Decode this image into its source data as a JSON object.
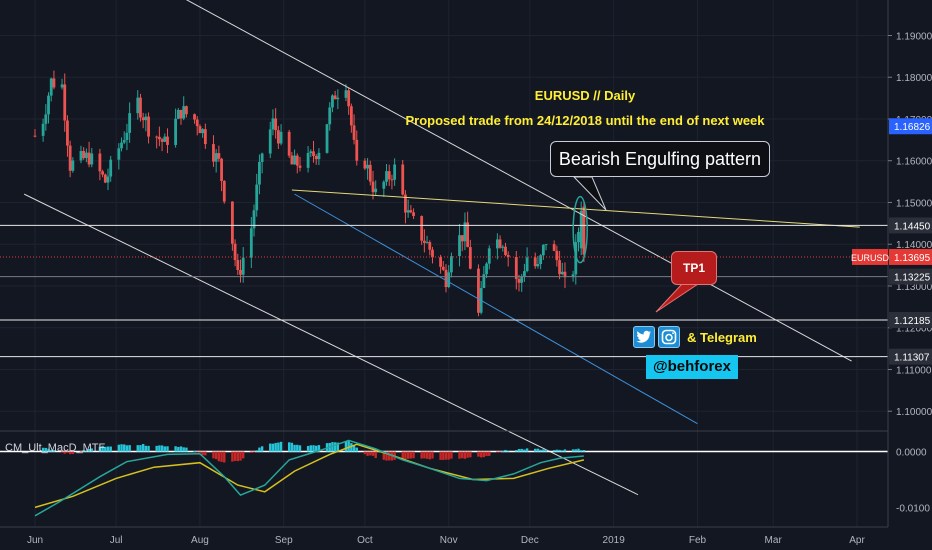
{
  "annotations": {
    "title": "EURUSD // Daily",
    "subtitle": "Proposed trade from 24/12/2018 until the end of next week",
    "pattern_callout": "Bearish Engulfing pattern",
    "target_label": "TP1",
    "social_text": "& Telegram",
    "handle": "@behforex"
  },
  "indicator": {
    "name": "CM_Ult_MacD_MTF"
  },
  "colors": {
    "background": "#131722",
    "bull": "#26a69a",
    "bear": "#ef5350",
    "annotation": "#ffee33",
    "trendline_white": "#d8d8d8",
    "trendline_yellow": "#e6d97a",
    "trendline_blue": "#3d8fd8",
    "price_tag": "#e53935",
    "ellipse": "#26a69a",
    "macd_line": "#26a69a",
    "signal_line": "#d4c11f"
  },
  "icons": [
    "twitter-icon",
    "instagram-icon"
  ],
  "chart_data": [
    {
      "type": "candlestick",
      "symbol": "EURUSD",
      "timeframe": "Daily",
      "y_axis_ticks": [
        "1.19000",
        "1.18000",
        "1.17000",
        "1.16000",
        "1.15000",
        "1.14000",
        "1.13000",
        "1.12000",
        "1.11000",
        "1.10000"
      ],
      "x_axis_ticks": [
        "Jun",
        "Jul",
        "Aug",
        "Sep",
        "Oct",
        "Nov",
        "Dec",
        "2019",
        "Feb",
        "Mar",
        "Apr"
      ],
      "ylim": [
        1.0955,
        1.1985
      ],
      "price_tag": {
        "symbol": "EURUSD",
        "value": "1.13695"
      },
      "horizontal_levels": [
        {
          "value": "1.16826",
          "style": "label-only",
          "color": "#2962ff"
        },
        {
          "value": "1.14450",
          "style": "solid"
        },
        {
          "value": "1.13695",
          "style": "dotted-red"
        },
        {
          "value": "1.13225",
          "style": "solid-gray"
        },
        {
          "value": "1.12185",
          "style": "solid"
        },
        {
          "value": "1.11307",
          "style": "solid"
        }
      ],
      "close_path": [
        [
          "Jun 01",
          1.166
        ],
        [
          "Jun 04",
          1.17
        ],
        [
          "Jun 07",
          1.179
        ],
        [
          "Jun 11",
          1.178
        ],
        [
          "Jun 14",
          1.159
        ],
        [
          "Jun 21",
          1.161
        ],
        [
          "Jun 27",
          1.155
        ],
        [
          "Jul 02",
          1.163
        ],
        [
          "Jul 09",
          1.174
        ],
        [
          "Jul 13",
          1.168
        ],
        [
          "Jul 19",
          1.164
        ],
        [
          "Jul 25",
          1.172
        ],
        [
          "Jul 31",
          1.1695
        ],
        [
          "Aug 08",
          1.1595
        ],
        [
          "Aug 13",
          1.141
        ],
        [
          "Aug 15",
          1.132
        ],
        [
          "Aug 20",
          1.144
        ],
        [
          "Aug 24",
          1.162
        ],
        [
          "Aug 28",
          1.169
        ],
        [
          "Sep 04",
          1.159
        ],
        [
          "Sep 10",
          1.16
        ],
        [
          "Sep 14",
          1.163
        ],
        [
          "Sep 20",
          1.176
        ],
        [
          "Sep 24",
          1.179
        ],
        [
          "Sep 28",
          1.158
        ],
        [
          "Oct 01",
          1.16
        ],
        [
          "Oct 05",
          1.152
        ],
        [
          "Oct 12",
          1.158
        ],
        [
          "Oct 17",
          1.147
        ],
        [
          "Oct 24",
          1.14
        ],
        [
          "Oct 31",
          1.132
        ],
        [
          "Nov 02",
          1.139
        ],
        [
          "Nov 07",
          1.143
        ],
        [
          "Nov 12",
          1.123
        ],
        [
          "Nov 16",
          1.141
        ],
        [
          "Nov 21",
          1.141
        ],
        [
          "Nov 27",
          1.13
        ],
        [
          "Nov 30",
          1.137
        ],
        [
          "Dec 04",
          1.134
        ],
        [
          "Dec 07",
          1.141
        ],
        [
          "Dec 12",
          1.135
        ],
        [
          "Dec 14",
          1.13
        ],
        [
          "Dec 17",
          1.134
        ],
        [
          "Dec 20",
          1.148
        ],
        [
          "Dec 21",
          1.1375
        ]
      ],
      "trendlines": [
        {
          "color": "white",
          "from": [
            "May 20",
            1.2225
          ],
          "to": [
            "Mar 30",
            1.112
          ]
        },
        {
          "color": "white",
          "from": [
            "May 28",
            1.152
          ],
          "to": [
            "Jan 10",
            1.08
          ]
        },
        {
          "color": "yellow",
          "from": [
            "Sep 04",
            1.153
          ],
          "to": [
            "Apr 02",
            1.1441
          ]
        },
        {
          "color": "blue",
          "from": [
            "Sep 05",
            1.152
          ],
          "to": [
            "Feb 01",
            1.097
          ]
        }
      ],
      "pattern_highlight": {
        "name": "Bearish Engulfing pattern",
        "date": "Dec 20",
        "range": [
          1.1375,
          1.1495
        ]
      },
      "target": {
        "label": "TP1",
        "value": "1.12185"
      }
    },
    {
      "type": "histogram+line",
      "title": "CM_Ult_MacD_MTF",
      "y_axis_ticks": [
        "0.0000",
        "-0.0100"
      ],
      "ylim": [
        -0.0135,
        0.0035
      ],
      "histogram": [
        [
          "Jun 04",
          0.0008
        ],
        [
          "Jun 14",
          -0.0005
        ],
        [
          "Jun 25",
          0.0009
        ],
        [
          "Jul 06",
          0.0013
        ],
        [
          "Jul 16",
          0.0011
        ],
        [
          "Jul 26",
          0.0009
        ],
        [
          "Aug 03",
          -0.0008
        ],
        [
          "Aug 10",
          -0.0019
        ],
        [
          "Aug 16",
          -0.0017
        ],
        [
          "Aug 24",
          0.001
        ],
        [
          "Aug 31",
          0.0018
        ],
        [
          "Sep 10",
          0.0009
        ],
        [
          "Sep 19",
          0.0016
        ],
        [
          "Sep 25",
          0.0018
        ],
        [
          "Oct 01",
          -0.0005
        ],
        [
          "Oct 09",
          -0.0016
        ],
        [
          "Oct 19",
          -0.0011
        ],
        [
          "Oct 29",
          -0.0014
        ],
        [
          "Nov 06",
          -0.0012
        ],
        [
          "Nov 14",
          -0.001
        ],
        [
          "Nov 22",
          0.0003
        ],
        [
          "Dec 01",
          0.0005
        ],
        [
          "Dec 10",
          0.0002
        ],
        [
          "Dec 21",
          0.0004
        ]
      ],
      "macd_line": [
        [
          "Jun 01",
          -0.0115
        ],
        [
          "Jun 10",
          -0.009
        ],
        [
          "Jun 25",
          -0.0045
        ],
        [
          "Jul 05",
          -0.0018
        ],
        [
          "Jul 20",
          -0.0005
        ],
        [
          "Aug 01",
          -0.0004
        ],
        [
          "Aug 10",
          -0.0045
        ],
        [
          "Aug 16",
          -0.0078
        ],
        [
          "Aug 25",
          -0.006
        ],
        [
          "Sep 03",
          -0.0015
        ],
        [
          "Sep 15",
          0.0003
        ],
        [
          "Sep 25",
          0.002
        ],
        [
          "Oct 05",
          0.0005
        ],
        [
          "Oct 15",
          -0.0015
        ],
        [
          "Oct 25",
          -0.003
        ],
        [
          "Nov 05",
          -0.0048
        ],
        [
          "Nov 15",
          -0.0052
        ],
        [
          "Nov 25",
          -0.004
        ],
        [
          "Dec 05",
          -0.002
        ],
        [
          "Dec 12",
          -0.0012
        ],
        [
          "Dec 21",
          -0.0008
        ]
      ],
      "signal_line": [
        [
          "Jun 01",
          -0.01
        ],
        [
          "Jun 15",
          -0.008
        ],
        [
          "Jul 01",
          -0.0048
        ],
        [
          "Jul 15",
          -0.0028
        ],
        [
          "Aug 01",
          -0.002
        ],
        [
          "Aug 15",
          -0.006
        ],
        [
          "Aug 25",
          -0.0072
        ],
        [
          "Sep 05",
          -0.0035
        ],
        [
          "Sep 18",
          -0.0005
        ],
        [
          "Sep 28",
          0.0013
        ],
        [
          "Oct 10",
          -0.0005
        ],
        [
          "Oct 25",
          -0.003
        ],
        [
          "Nov 10",
          -0.005
        ],
        [
          "Nov 25",
          -0.0048
        ],
        [
          "Dec 08",
          -0.003
        ],
        [
          "Dec 21",
          -0.0015
        ]
      ]
    }
  ]
}
